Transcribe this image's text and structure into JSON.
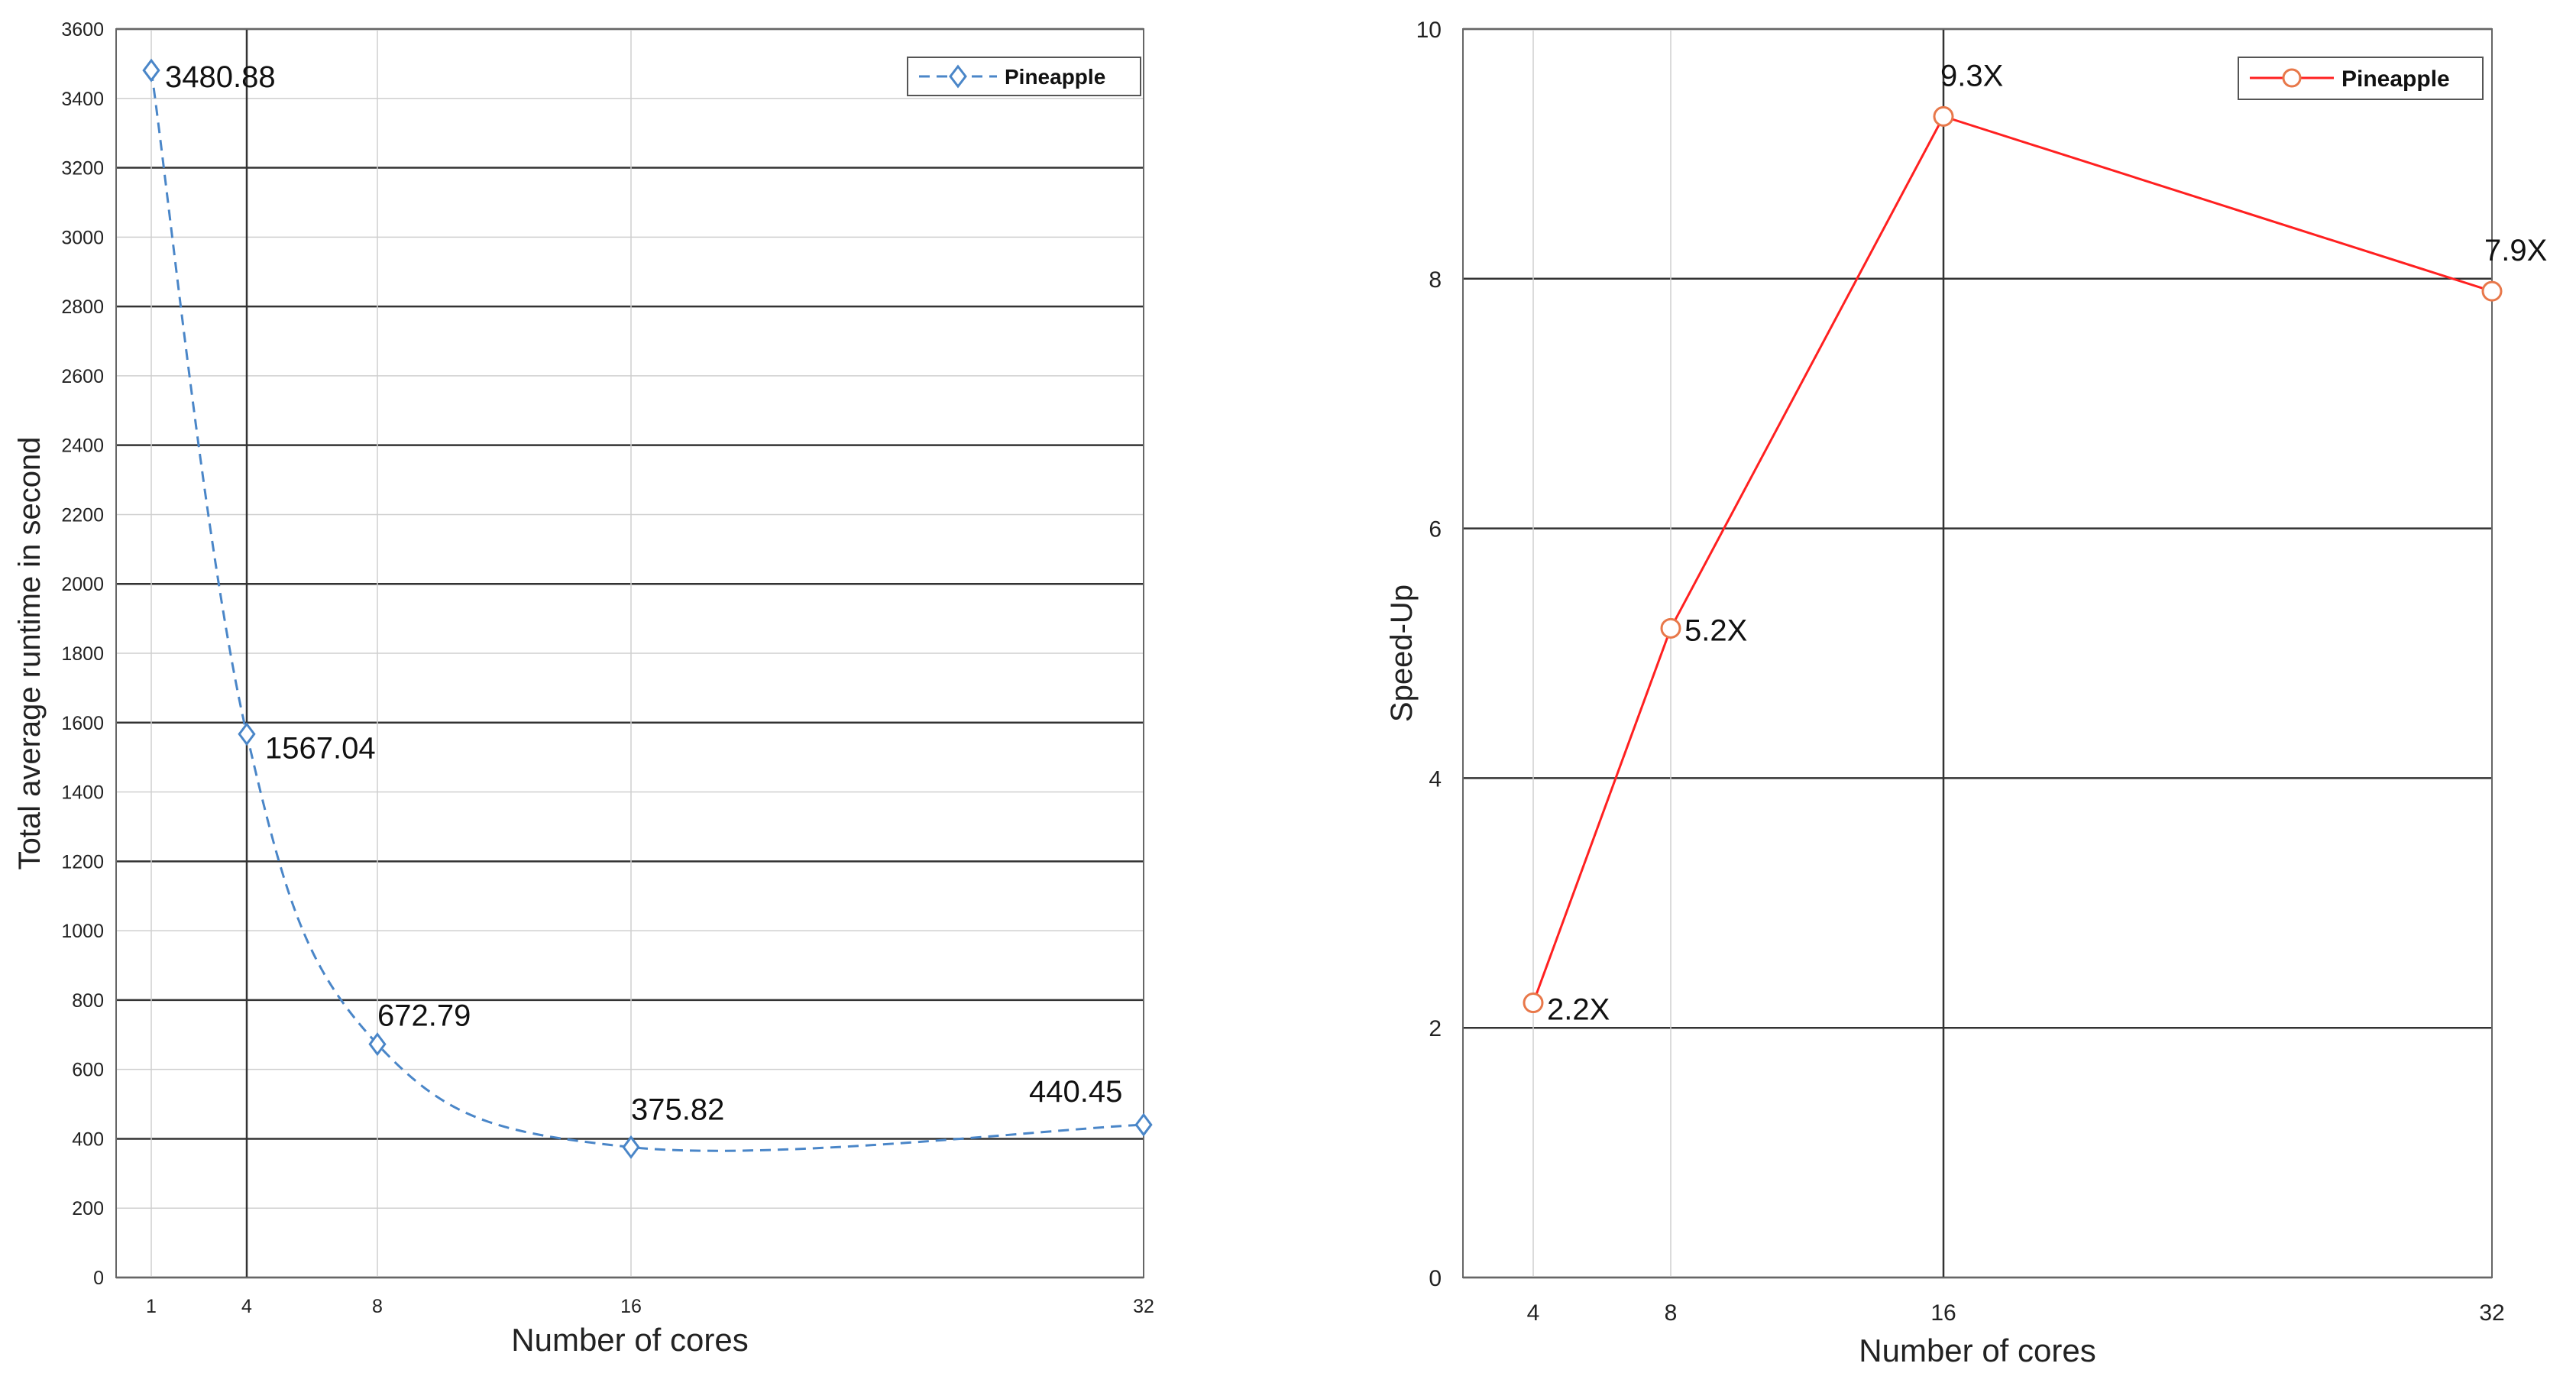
{
  "chart_data": [
    {
      "type": "line",
      "title": "",
      "xlabel": "Number of cores",
      "ylabel": "Total average runtime in second",
      "x_ticks": [
        "1",
        "4",
        "8",
        "16",
        "32"
      ],
      "y_ticks": [
        "0",
        "200",
        "400",
        "600",
        "800",
        "1000",
        "1200",
        "1400",
        "1600",
        "1800",
        "2000",
        "2200",
        "2400",
        "2600",
        "2800",
        "3000",
        "3200",
        "3400",
        "3600"
      ],
      "ylim": [
        0,
        3600
      ],
      "grid": true,
      "legend_position": "top-right",
      "series": [
        {
          "name": "Pineapple",
          "color": "#4a86c8",
          "line_style": "dashed",
          "marker": "diamond",
          "x": [
            1,
            4,
            8,
            16,
            32
          ],
          "values": [
            3480.88,
            1567.04,
            672.79,
            375.82,
            440.45
          ],
          "labels": [
            "3480.88",
            "1567.04",
            "672.79",
            "375.82",
            "440.45"
          ]
        }
      ]
    },
    {
      "type": "line",
      "title": "",
      "xlabel": "Number of cores",
      "ylabel": "Speed-Up",
      "x_ticks": [
        "4",
        "8",
        "16",
        "32"
      ],
      "y_ticks": [
        "0",
        "2",
        "4",
        "6",
        "8",
        "10"
      ],
      "ylim": [
        0,
        10
      ],
      "grid": true,
      "legend_position": "top-right",
      "series": [
        {
          "name": "Pineapple",
          "color": "#ff2020",
          "marker_color": "#e8784a",
          "line_style": "solid",
          "marker": "circle",
          "x": [
            4,
            8,
            16,
            32
          ],
          "values": [
            2.2,
            5.2,
            9.3,
            7.9
          ],
          "labels": [
            "2.2X",
            "5.2X",
            "9.3X",
            "7.9X"
          ]
        }
      ]
    }
  ]
}
